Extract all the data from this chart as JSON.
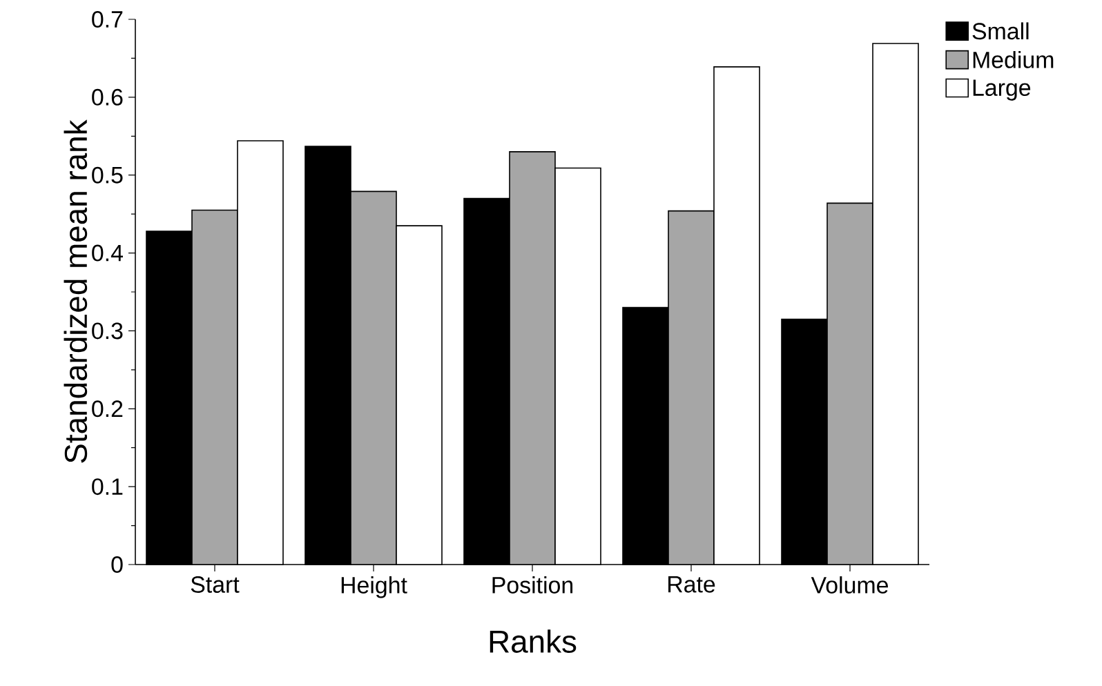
{
  "chart_data": {
    "type": "bar",
    "xlabel": "Ranks",
    "ylabel": "Standardized mean rank",
    "categories": [
      "Start",
      "Height",
      "Position",
      "Rate",
      "Volume"
    ],
    "series": [
      {
        "name": "Small",
        "color": "#000000",
        "values": [
          0.428,
          0.537,
          0.47,
          0.33,
          0.315
        ]
      },
      {
        "name": "Medium",
        "color": "#a6a6a6",
        "values": [
          0.455,
          0.479,
          0.53,
          0.454,
          0.464
        ]
      },
      {
        "name": "Large",
        "color": "#ffffff",
        "values": [
          0.544,
          0.435,
          0.509,
          0.639,
          0.669
        ]
      }
    ],
    "ylim": [
      0,
      0.7
    ],
    "yticks": [
      0,
      0.1,
      0.2,
      0.3,
      0.4,
      0.5,
      0.6,
      0.7
    ],
    "grid": false,
    "legend": "top right"
  }
}
